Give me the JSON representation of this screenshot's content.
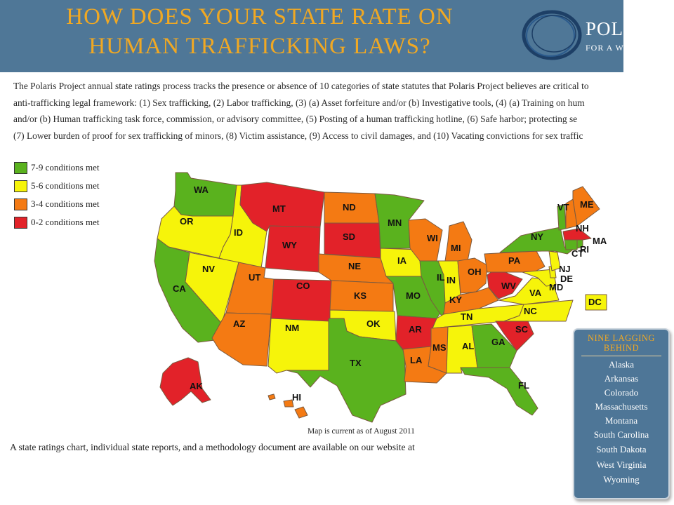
{
  "header": {
    "title_line1": "HOW DOES YOUR STATE RATE ON",
    "title_line2": "HUMAN TRAFFICKING LAWS?",
    "logo_name": "POLA",
    "logo_tagline": "FOR A W",
    "background_color": "#4f7797",
    "title_color": "#f0a823"
  },
  "intro": {
    "lines": [
      "The Polaris Project annual state ratings process tracks the presence or absence of 10 categories of state statutes that Polaris Project believes are critical to",
      "anti-trafficking legal framework: (1) Sex trafficking, (2) Labor trafficking, (3) (a) Asset forfeiture and/or (b) Investigative tools, (4) (a) Training on hum",
      "and/or (b) Human trafficking task force, commission, or advisory committee, (5) Posting of a human trafficking hotline, (6) Safe harbor; protecting se",
      "(7) Lower burden of proof for sex trafficking of minors, (8) Victim assistance, (9) Access to civil damages, and (10) Vacating convictions for sex traffic"
    ]
  },
  "legend": [
    {
      "label": "7-9 conditions met",
      "color": "#5ab21e"
    },
    {
      "label": "5-6 conditions met",
      "color": "#f6f40a"
    },
    {
      "label": "3-4 conditions met",
      "color": "#f47a13"
    },
    {
      "label": "0-2 conditions met",
      "color": "#e22229"
    }
  ],
  "map": {
    "colors": {
      "green": "#5ab21e",
      "yellow": "#f6f40a",
      "orange": "#f47a13",
      "red": "#e22229"
    },
    "states": {
      "WA": "green",
      "OR": "yellow",
      "CA": "green",
      "ID": "yellow",
      "NV": "yellow",
      "MT": "red",
      "WY": "red",
      "UT": "orange",
      "AZ": "orange",
      "CO": "red",
      "NM": "yellow",
      "ND": "orange",
      "SD": "red",
      "NE": "orange",
      "KS": "orange",
      "OK": "yellow",
      "TX": "green",
      "MN": "green",
      "IA": "yellow",
      "MO": "green",
      "AR": "red",
      "LA": "orange",
      "WI": "orange",
      "IL": "green",
      "MI": "orange",
      "IN": "yellow",
      "OH": "orange",
      "KY": "orange",
      "TN": "yellow",
      "MS": "orange",
      "AL": "yellow",
      "GA": "green",
      "FL": "green",
      "SC": "red",
      "NC": "yellow",
      "VA": "yellow",
      "WV": "red",
      "PA": "orange",
      "NY": "green",
      "VT": "green",
      "NH": "orange",
      "ME": "orange",
      "MA": "red",
      "RI": "green",
      "CT": "green",
      "NJ": "yellow",
      "DE": "yellow",
      "MD": "yellow",
      "DC": "yellow",
      "AK": "red",
      "HI": "orange"
    },
    "caption": "Map is current as of August 2011"
  },
  "footer_text": "A state ratings chart, individual state reports, and a methodology document are available on our website at",
  "lagging": {
    "title_line1": "NINE LAGGING",
    "title_line2": "BEHIND",
    "states": [
      "Alaska",
      "Arkansas",
      "Colorado",
      "Massachusetts",
      "Montana",
      "South Carolina",
      "South Dakota",
      "West Virginia",
      "Wyoming"
    ]
  }
}
